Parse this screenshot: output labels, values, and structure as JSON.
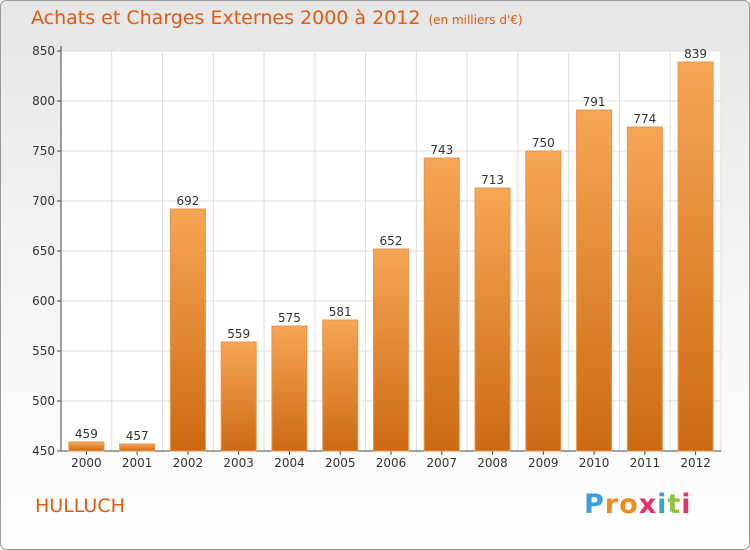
{
  "title": "Achats et Charges Externes 2000 à 2012",
  "subtitle": "(en milliers d'€)",
  "commune": "HULLUCH",
  "logo": "Proxiti",
  "colors": {
    "bar_top": "#f7a655",
    "bar_bottom": "#cc6a12",
    "accent": "#e05a10",
    "grid": "#dedede"
  },
  "chart_data": {
    "type": "bar",
    "categories": [
      "2000",
      "2001",
      "2002",
      "2003",
      "2004",
      "2005",
      "2006",
      "2007",
      "2008",
      "2009",
      "2010",
      "2011",
      "2012"
    ],
    "values": [
      459,
      457,
      692,
      559,
      575,
      581,
      652,
      743,
      713,
      750,
      791,
      774,
      839
    ],
    "y_ticks": [
      450,
      500,
      550,
      600,
      650,
      700,
      750,
      800,
      850
    ],
    "ylim": [
      450,
      850
    ],
    "grid": true
  }
}
